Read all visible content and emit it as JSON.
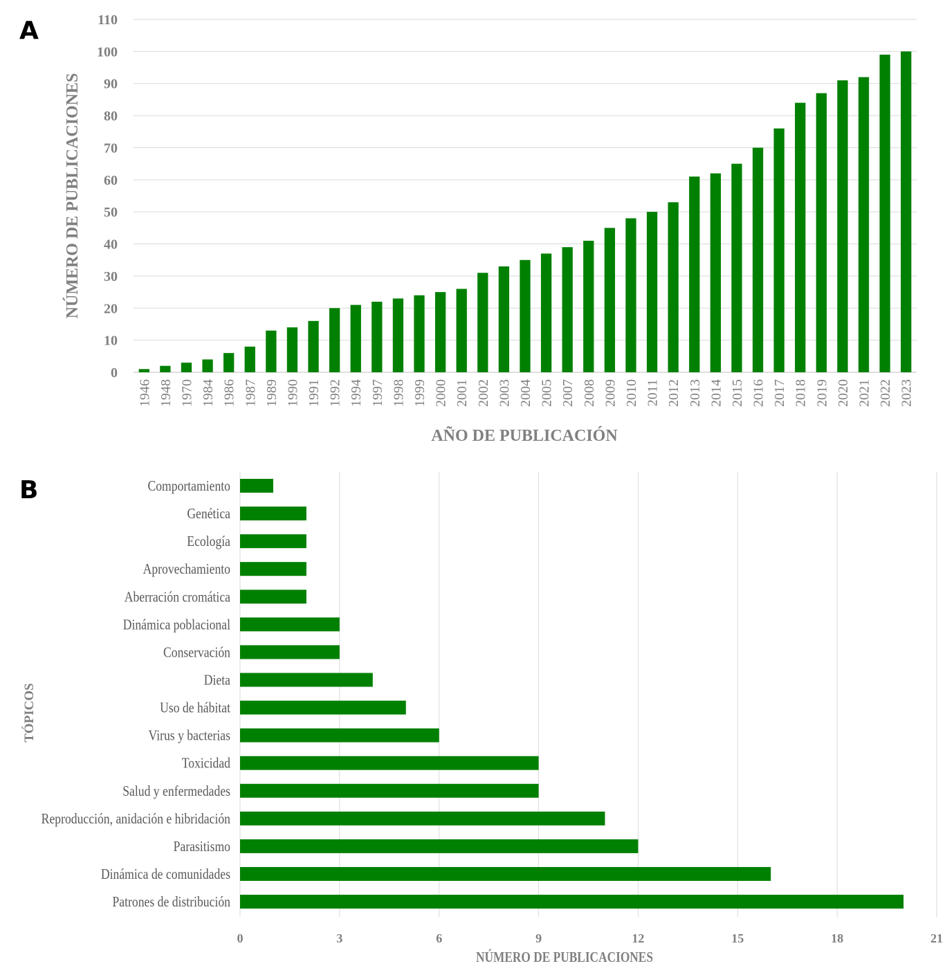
{
  "chart_data": [
    {
      "panel_label": "A",
      "type": "bar",
      "orientation": "vertical",
      "xlabel": "AÑO DE PUBLICACIÓN",
      "ylabel": "NÚMERO DE PUBLICACIONES",
      "ylim": [
        0,
        110
      ],
      "yticks": [
        0,
        10,
        20,
        30,
        40,
        50,
        60,
        70,
        80,
        90,
        100,
        110
      ],
      "grid": "horizontal",
      "color": "#008000",
      "categories": [
        "1946",
        "1948",
        "1970",
        "1984",
        "1986",
        "1987",
        "1989",
        "1990",
        "1991",
        "1992",
        "1994",
        "1997",
        "1998",
        "1999",
        "2000",
        "2001",
        "2002",
        "2003",
        "2004",
        "2005",
        "2007",
        "2008",
        "2009",
        "2010",
        "2011",
        "2012",
        "2013",
        "2014",
        "2015",
        "2016",
        "2017",
        "2018",
        "2019",
        "2020",
        "2021",
        "2022",
        "2023"
      ],
      "values": [
        1,
        2,
        3,
        4,
        6,
        8,
        13,
        14,
        16,
        20,
        21,
        22,
        23,
        24,
        25,
        26,
        31,
        33,
        35,
        37,
        39,
        41,
        45,
        48,
        50,
        53,
        61,
        62,
        65,
        70,
        76,
        84,
        87,
        91,
        92,
        99,
        100
      ]
    },
    {
      "panel_label": "B",
      "type": "bar",
      "orientation": "horizontal",
      "xlabel": "NÚMERO DE PUBLICACIONES",
      "ylabel": "TÓPICOS",
      "xlim": [
        0,
        21
      ],
      "xticks": [
        0,
        3,
        6,
        9,
        12,
        15,
        18,
        21
      ],
      "grid": "vertical",
      "color": "#008000",
      "categories": [
        "Comportamiento",
        "Genética",
        "Ecología",
        "Aprovechamiento",
        "Aberración cromática",
        "Dinámica poblacional",
        "Conservación",
        "Dieta",
        "Uso de hábitat",
        "Virus y bacterias",
        "Toxicidad",
        "Salud y enfermedades",
        "Reproducción, anidación e hibridación",
        "Parasitismo",
        "Dinámica de comunidades",
        "Patrones de distribución"
      ],
      "values": [
        1,
        2,
        2,
        2,
        2,
        3,
        3,
        4,
        5,
        6,
        9,
        9,
        11,
        12,
        16,
        20
      ]
    }
  ]
}
